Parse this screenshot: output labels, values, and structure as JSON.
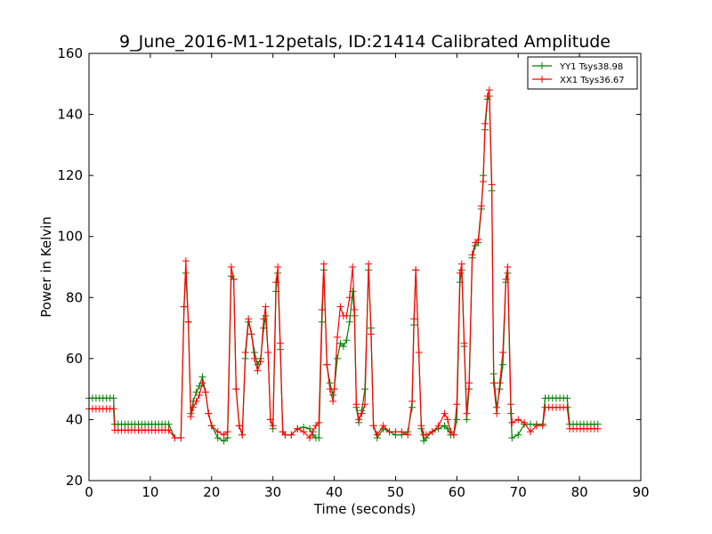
{
  "chart_data": {
    "type": "line",
    "title": "9_June_2016-M1-12petals, ID:21414 Calibrated Amplitude",
    "xlabel": "Time (seconds)",
    "ylabel": "Power in Kelvin",
    "xlim": [
      0,
      90
    ],
    "ylim": [
      20,
      160
    ],
    "xticks": [
      0,
      10,
      20,
      30,
      40,
      50,
      60,
      70,
      80,
      90
    ],
    "yticks": [
      20,
      40,
      60,
      80,
      100,
      120,
      140,
      160
    ],
    "grid": false,
    "legend_position": "top-right",
    "marker": "+",
    "series": [
      {
        "name": "YY1 Tsys38.98",
        "color": "#008000",
        "points": [
          [
            0,
            47
          ],
          [
            4,
            47
          ],
          [
            4.2,
            38.5
          ],
          [
            13,
            38.5
          ],
          [
            14,
            34
          ],
          [
            15,
            34
          ],
          [
            15.5,
            77
          ],
          [
            15.8,
            88
          ],
          [
            16.2,
            72
          ],
          [
            16.6,
            42
          ],
          [
            17,
            46
          ],
          [
            17.5,
            49
          ],
          [
            18,
            51
          ],
          [
            18.5,
            54
          ],
          [
            19,
            49
          ],
          [
            19.5,
            42
          ],
          [
            20,
            38
          ],
          [
            21,
            34
          ],
          [
            22,
            33
          ],
          [
            22.6,
            34
          ],
          [
            23.2,
            87
          ],
          [
            23.6,
            86
          ],
          [
            24,
            50
          ],
          [
            24.5,
            38
          ],
          [
            25,
            35
          ],
          [
            25.5,
            60
          ],
          [
            26,
            72
          ],
          [
            26.5,
            68
          ],
          [
            27,
            62
          ],
          [
            27.5,
            58
          ],
          [
            28,
            60
          ],
          [
            28.5,
            70
          ],
          [
            28.8,
            74
          ],
          [
            29.2,
            62
          ],
          [
            29.6,
            40
          ],
          [
            30,
            37
          ],
          [
            30.5,
            82
          ],
          [
            30.8,
            88
          ],
          [
            31.2,
            63
          ],
          [
            31.6,
            36
          ],
          [
            32,
            35
          ],
          [
            33,
            35
          ],
          [
            34,
            37
          ],
          [
            35,
            37.5
          ],
          [
            36,
            37
          ],
          [
            36.5,
            35
          ],
          [
            37,
            34
          ],
          [
            37.5,
            34
          ],
          [
            38,
            72
          ],
          [
            38.3,
            89
          ],
          [
            38.8,
            58
          ],
          [
            39.3,
            52
          ],
          [
            39.8,
            48
          ],
          [
            40,
            50
          ],
          [
            40.5,
            60
          ],
          [
            41,
            65
          ],
          [
            41.5,
            64
          ],
          [
            42,
            66
          ],
          [
            42.5,
            72
          ],
          [
            43,
            82
          ],
          [
            43.3,
            74
          ],
          [
            43.6,
            44
          ],
          [
            44,
            39
          ],
          [
            44.5,
            43
          ],
          [
            45,
            50
          ],
          [
            45.6,
            89
          ],
          [
            46,
            70
          ],
          [
            46.4,
            38
          ],
          [
            47,
            34
          ],
          [
            48,
            37
          ],
          [
            49,
            36
          ],
          [
            50,
            35
          ],
          [
            51,
            35
          ],
          [
            52,
            36
          ],
          [
            52.7,
            44
          ],
          [
            53,
            71
          ],
          [
            53.3,
            89
          ],
          [
            53.8,
            62
          ],
          [
            54.2,
            37
          ],
          [
            54.6,
            33
          ],
          [
            55,
            34
          ],
          [
            56,
            36
          ],
          [
            57,
            37
          ],
          [
            58,
            38
          ],
          [
            58.5,
            37
          ],
          [
            59,
            35
          ],
          [
            59.5,
            35
          ],
          [
            60,
            40
          ],
          [
            60.5,
            85
          ],
          [
            60.8,
            89
          ],
          [
            61.2,
            64
          ],
          [
            61.6,
            40
          ],
          [
            62,
            50
          ],
          [
            62.5,
            93
          ],
          [
            63,
            97
          ],
          [
            63.5,
            98
          ],
          [
            64,
            109
          ],
          [
            64.3,
            120
          ],
          [
            64.6,
            135
          ],
          [
            65,
            145
          ],
          [
            65.3,
            146
          ],
          [
            65.7,
            115
          ],
          [
            66,
            55
          ],
          [
            66.5,
            44
          ],
          [
            67,
            50
          ],
          [
            67.5,
            58
          ],
          [
            68,
            85
          ],
          [
            68.3,
            88
          ],
          [
            68.8,
            42
          ],
          [
            69,
            34
          ],
          [
            70,
            35
          ],
          [
            71,
            38.5
          ],
          [
            72,
            38.5
          ],
          [
            73,
            38.5
          ],
          [
            74,
            38.5
          ],
          [
            74.4,
            47
          ],
          [
            78,
            47
          ],
          [
            78.4,
            38.5
          ],
          [
            83,
            38.5
          ]
        ]
      },
      {
        "name": "XX1 Tsys36.67",
        "color": "#ff0000",
        "points": [
          [
            0,
            43.5
          ],
          [
            4,
            43.5
          ],
          [
            4.2,
            36.5
          ],
          [
            13,
            36.5
          ],
          [
            14,
            34
          ],
          [
            15,
            34
          ],
          [
            15.5,
            77
          ],
          [
            15.8,
            92
          ],
          [
            16.2,
            72
          ],
          [
            16.6,
            41
          ],
          [
            17,
            44
          ],
          [
            17.5,
            46
          ],
          [
            18,
            48
          ],
          [
            18.5,
            52
          ],
          [
            19,
            49
          ],
          [
            19.5,
            42
          ],
          [
            20,
            38
          ],
          [
            21,
            36
          ],
          [
            22,
            35
          ],
          [
            22.6,
            36
          ],
          [
            23.2,
            90
          ],
          [
            23.6,
            86
          ],
          [
            24,
            50
          ],
          [
            24.5,
            38
          ],
          [
            25,
            35
          ],
          [
            25.5,
            62
          ],
          [
            26,
            73
          ],
          [
            26.5,
            68
          ],
          [
            27,
            60
          ],
          [
            27.5,
            56
          ],
          [
            28,
            59
          ],
          [
            28.5,
            73
          ],
          [
            28.8,
            77
          ],
          [
            29.2,
            62
          ],
          [
            29.6,
            40
          ],
          [
            30,
            38
          ],
          [
            30.5,
            85
          ],
          [
            30.8,
            90
          ],
          [
            31.2,
            65
          ],
          [
            31.6,
            36
          ],
          [
            32,
            35
          ],
          [
            33,
            35
          ],
          [
            34,
            37
          ],
          [
            35,
            36
          ],
          [
            36,
            34
          ],
          [
            36.5,
            36
          ],
          [
            37,
            38
          ],
          [
            37.5,
            39
          ],
          [
            38,
            76
          ],
          [
            38.3,
            91
          ],
          [
            38.8,
            58
          ],
          [
            39.3,
            50
          ],
          [
            39.8,
            46
          ],
          [
            40,
            50
          ],
          [
            40.5,
            67
          ],
          [
            41,
            77
          ],
          [
            41.5,
            74
          ],
          [
            42,
            74
          ],
          [
            42.5,
            80
          ],
          [
            43,
            90
          ],
          [
            43.3,
            76
          ],
          [
            43.6,
            45
          ],
          [
            44,
            40
          ],
          [
            44.5,
            42
          ],
          [
            45,
            45
          ],
          [
            45.6,
            91
          ],
          [
            46,
            68
          ],
          [
            46.4,
            38
          ],
          [
            47,
            35
          ],
          [
            48,
            38
          ],
          [
            49,
            36
          ],
          [
            50,
            36
          ],
          [
            51,
            36
          ],
          [
            52,
            35
          ],
          [
            52.7,
            46
          ],
          [
            53,
            73
          ],
          [
            53.3,
            89
          ],
          [
            53.8,
            62
          ],
          [
            54.2,
            38
          ],
          [
            54.6,
            35
          ],
          [
            55,
            35
          ],
          [
            56,
            36
          ],
          [
            57,
            38
          ],
          [
            58,
            42
          ],
          [
            58.5,
            40
          ],
          [
            59,
            36
          ],
          [
            59.5,
            35
          ],
          [
            60,
            45
          ],
          [
            60.5,
            88
          ],
          [
            60.8,
            91
          ],
          [
            61.2,
            65
          ],
          [
            61.6,
            42
          ],
          [
            62,
            52
          ],
          [
            62.5,
            94
          ],
          [
            63,
            98
          ],
          [
            63.5,
            99
          ],
          [
            64,
            110
          ],
          [
            64.3,
            118
          ],
          [
            64.6,
            137
          ],
          [
            65,
            146
          ],
          [
            65.3,
            148
          ],
          [
            65.7,
            117
          ],
          [
            66,
            52
          ],
          [
            66.5,
            42
          ],
          [
            67,
            52
          ],
          [
            67.5,
            62
          ],
          [
            68,
            86
          ],
          [
            68.3,
            90
          ],
          [
            68.8,
            45
          ],
          [
            69,
            39
          ],
          [
            70,
            40
          ],
          [
            71,
            39
          ],
          [
            72,
            36
          ],
          [
            73,
            38
          ],
          [
            74,
            38
          ],
          [
            74.4,
            44
          ],
          [
            78,
            44
          ],
          [
            78.4,
            37
          ],
          [
            83,
            37
          ]
        ]
      }
    ]
  }
}
